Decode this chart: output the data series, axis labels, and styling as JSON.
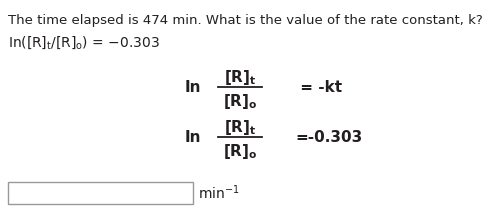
{
  "bg_color": "#ffffff",
  "text_color": "#231f20",
  "title_normal": "The time elapsed is 474 min. ",
  "title_bold": "What is the value of the rate constant, k?",
  "given_line": "In([R]",
  "fontsize_title": 9.5,
  "fontsize_body": 10,
  "fontsize_eq": 11
}
